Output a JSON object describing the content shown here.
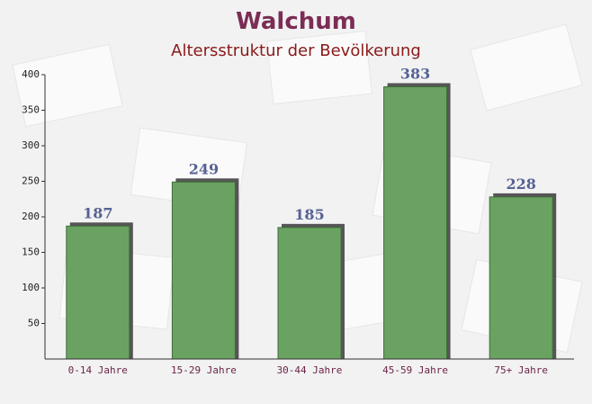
{
  "chart_data": {
    "type": "bar",
    "title": "Walchum",
    "subtitle": "Altersstruktur der Bevölkerung",
    "categories": [
      "0-14 Jahre",
      "15-29 Jahre",
      "30-44 Jahre",
      "45-59 Jahre",
      "75+ Jahre"
    ],
    "values": [
      187,
      249,
      185,
      383,
      228
    ],
    "color": "#6aa262",
    "ylim": [
      0,
      400
    ],
    "yticks": [
      50,
      100,
      150,
      200,
      250,
      300,
      350,
      400
    ],
    "grid": false
  }
}
